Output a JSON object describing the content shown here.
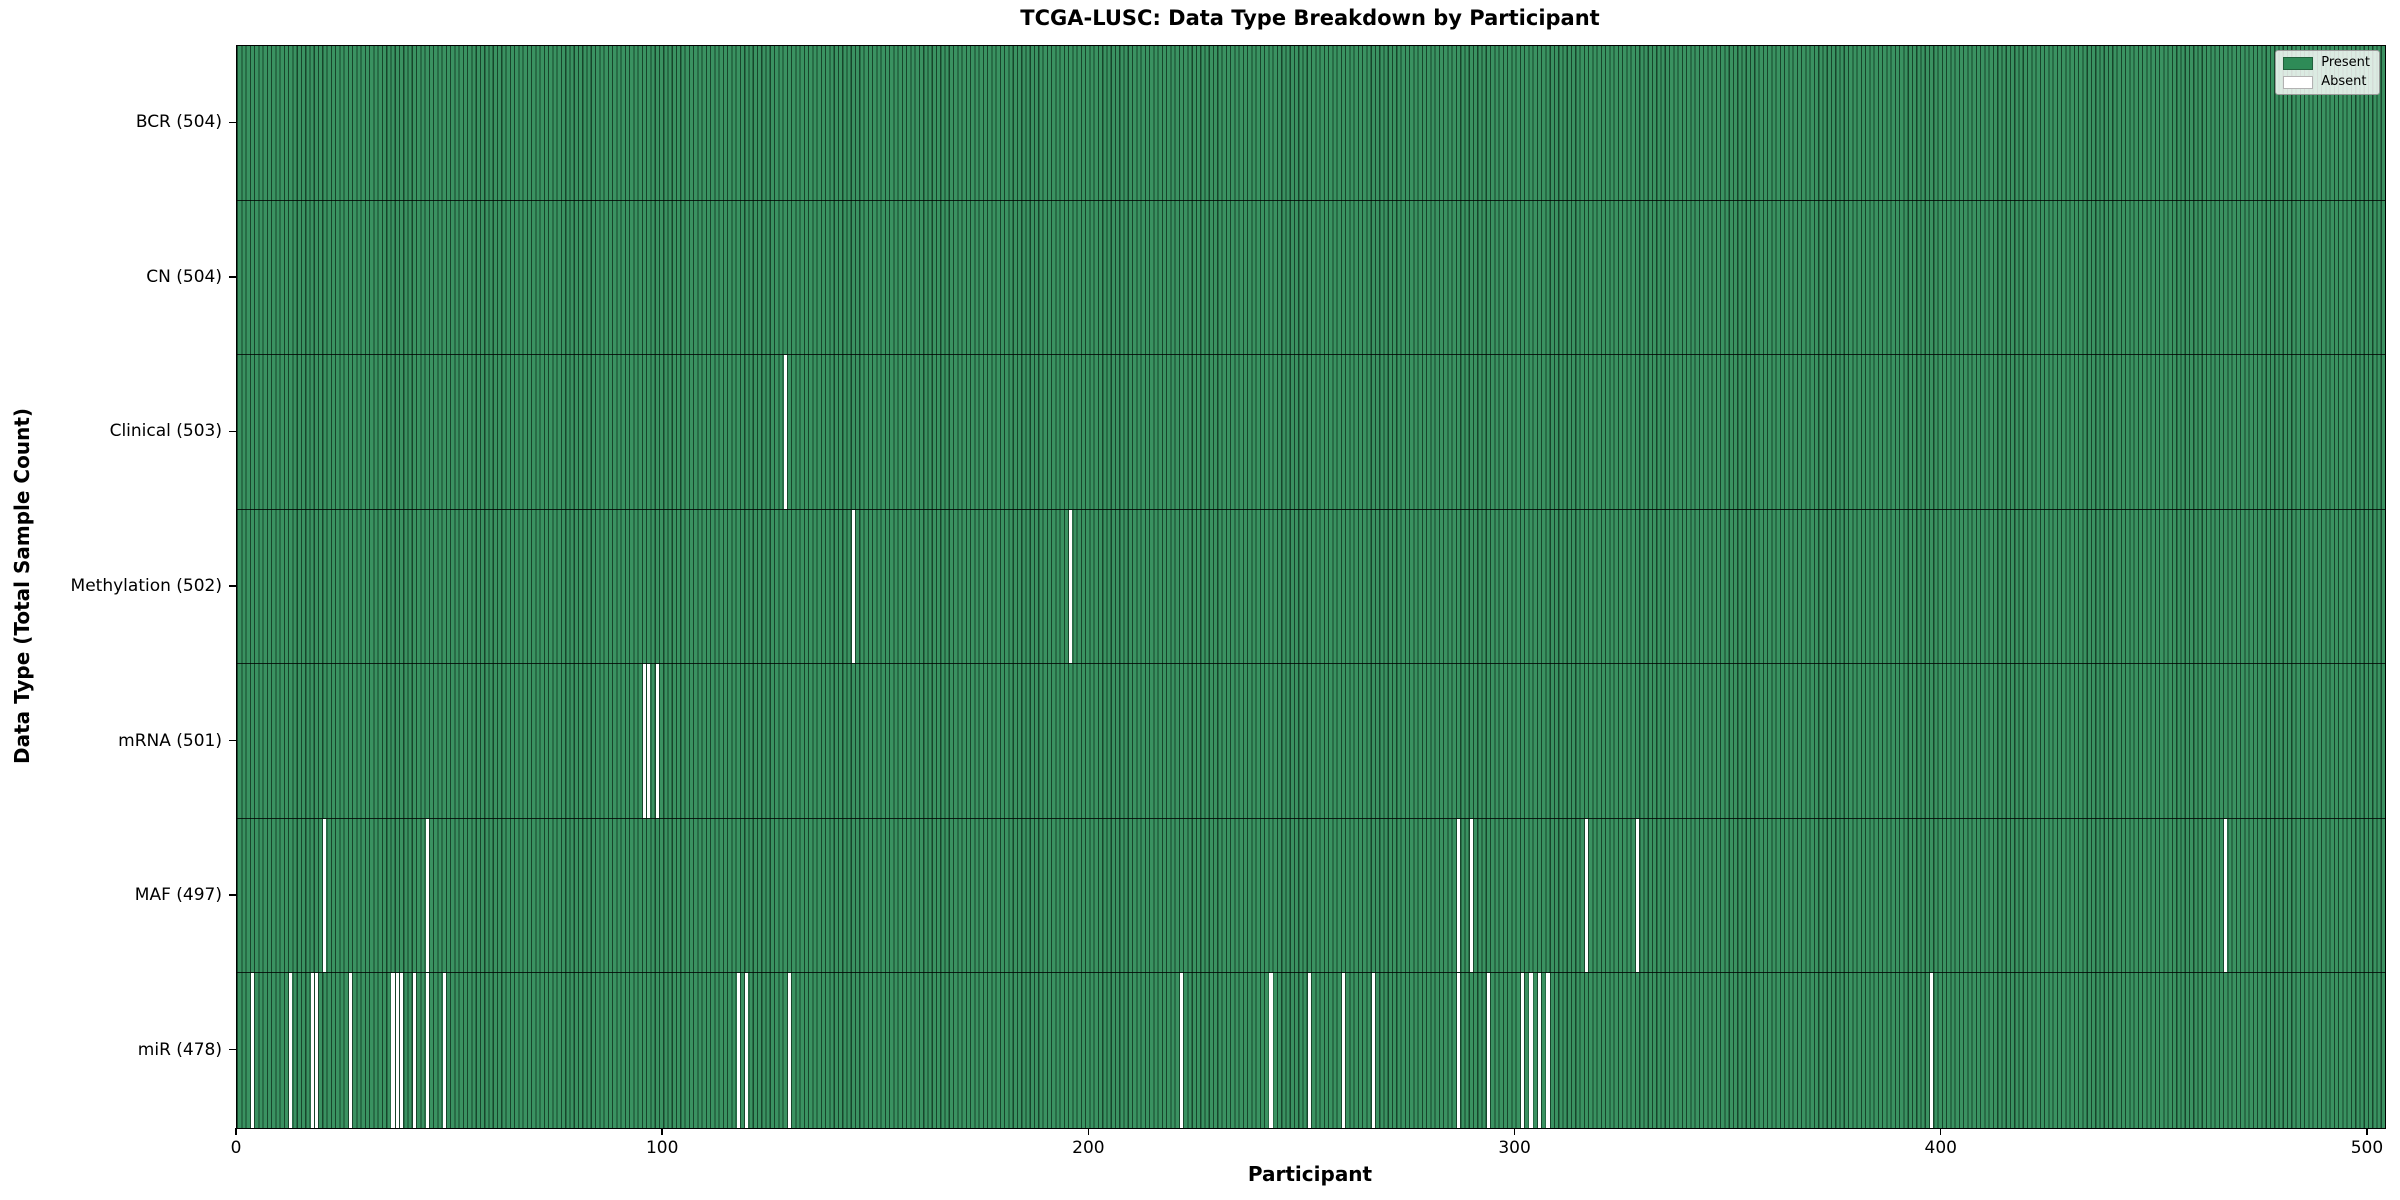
{
  "chart_data": {
    "type": "heatmap",
    "title": "TCGA-LUSC: Data Type Breakdown by Participant",
    "xlabel": "Participant",
    "ylabel": "Data Type (Total Sample Count)",
    "x_ticks": [
      0,
      100,
      200,
      300,
      400,
      500
    ],
    "x_range": [
      0,
      504
    ],
    "n_participants": 504,
    "grid": false,
    "colors": {
      "present": "#2E8B57",
      "absent": "#FFFFFF",
      "bar_edge": "rgba(0,0,0,0.5)",
      "row_separator": "rgba(0,0,0,0.78)"
    },
    "legend": {
      "position": "upper right",
      "items": [
        {
          "label": "Present",
          "color": "#2E8B57"
        },
        {
          "label": "Absent",
          "color": "#FFFFFF"
        }
      ]
    },
    "rows": [
      {
        "label": "BCR (504)",
        "data_type": "BCR",
        "total": 504,
        "absent_participants": []
      },
      {
        "label": "CN (504)",
        "data_type": "CN",
        "total": 504,
        "absent_participants": []
      },
      {
        "label": "Clinical (503)",
        "data_type": "Clinical",
        "total": 503,
        "absent_participants": [
          128
        ]
      },
      {
        "label": "Methylation (502)",
        "data_type": "Methylation",
        "total": 502,
        "absent_participants": [
          144,
          195
        ]
      },
      {
        "label": "mRNA (501)",
        "data_type": "mRNA",
        "total": 501,
        "absent_participants": [
          95,
          96,
          98
        ]
      },
      {
        "label": "MAF (497)",
        "data_type": "MAF",
        "total": 497,
        "absent_participants": [
          20,
          44,
          286,
          289,
          316,
          328,
          466
        ]
      },
      {
        "label": "miR (478)",
        "data_type": "miR",
        "total": 478,
        "absent_participants": [
          3,
          12,
          17,
          18,
          26,
          36,
          37,
          38,
          41,
          44,
          48,
          117,
          119,
          129,
          221,
          242,
          251,
          259,
          266,
          286,
          293,
          301,
          303,
          305,
          307,
          397
        ]
      }
    ]
  }
}
